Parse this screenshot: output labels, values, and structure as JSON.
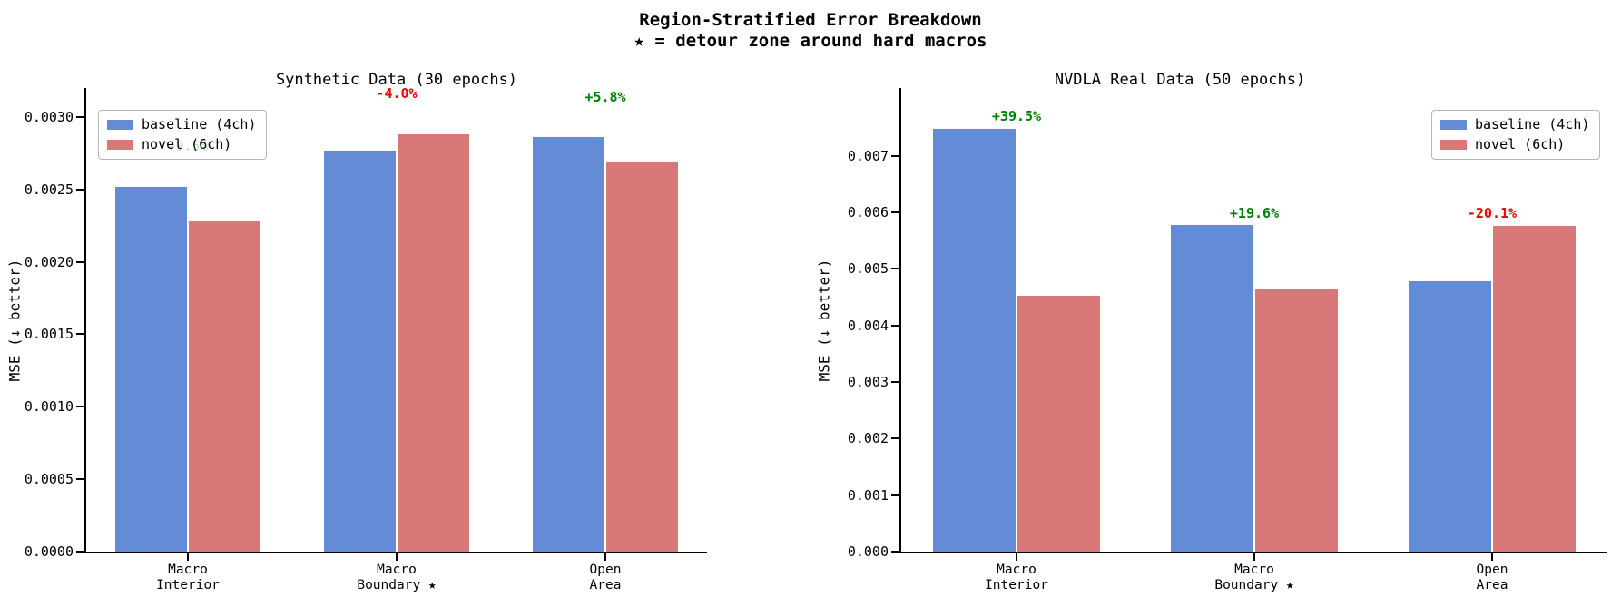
{
  "figure": {
    "title_line1": "Region-Stratified Error Breakdown",
    "title_line2": "★ = detour zone around hard macros",
    "background": "#ffffff",
    "axis_color": "#000000"
  },
  "legend": {
    "items": [
      {
        "label": "baseline (4ch)",
        "color": "#648cd6"
      },
      {
        "label": "novel (6ch)",
        "color": "#d87878"
      }
    ]
  },
  "chart_data": [
    {
      "type": "bar",
      "title": "Synthetic Data (30 epochs)",
      "ylabel": "MSE (↓ better)",
      "categories": [
        "Macro\nInterior",
        "Macro\nBoundary ★",
        "Open\nArea"
      ],
      "series": [
        {
          "name": "baseline (4ch)",
          "color": "#648cd6",
          "values": [
            0.00252,
            0.00277,
            0.00286
          ]
        },
        {
          "name": "novel (6ch)",
          "color": "#d87878",
          "values": [
            0.00228,
            0.00288,
            0.00269
          ]
        }
      ],
      "annotations": [
        {
          "text": "+9.5%",
          "color": "#008000"
        },
        {
          "text": "-4.0%",
          "color": "#ee0000"
        },
        {
          "text": "+5.8%",
          "color": "#008000"
        }
      ],
      "ylim": [
        0,
        0.0032
      ],
      "yticks": [
        0,
        0.0005,
        0.001,
        0.0015,
        0.002,
        0.0025,
        0.003
      ],
      "ytick_labels": [
        "0.0000",
        "0.0005",
        "0.0010",
        "0.0015",
        "0.0020",
        "0.0025",
        "0.0030"
      ],
      "legend_position": "upper-left",
      "annotation_offset": 0.00033,
      "grid": false
    },
    {
      "type": "bar",
      "title": "NVDLA Real Data (50 epochs)",
      "ylabel": "MSE (↓ better)",
      "categories": [
        "Macro\nInterior",
        "Macro\nBoundary ★",
        "Open\nArea"
      ],
      "series": [
        {
          "name": "baseline (4ch)",
          "color": "#648cd6",
          "values": [
            0.00748,
            0.00577,
            0.00479
          ]
        },
        {
          "name": "novel (6ch)",
          "color": "#d87878",
          "values": [
            0.00452,
            0.00464,
            0.00576
          ]
        }
      ],
      "annotations": [
        {
          "text": "+39.5%",
          "color": "#008000"
        },
        {
          "text": "+19.6%",
          "color": "#008000"
        },
        {
          "text": "-20.1%",
          "color": "#ee0000"
        }
      ],
      "ylim": [
        0,
        0.0082
      ],
      "yticks": [
        0,
        0.001,
        0.002,
        0.003,
        0.004,
        0.005,
        0.006,
        0.007
      ],
      "ytick_labels": [
        "0.000",
        "0.001",
        "0.002",
        "0.003",
        "0.004",
        "0.005",
        "0.006",
        "0.007"
      ],
      "legend_position": "upper-right",
      "annotation_offset": 0.00035,
      "grid": false
    }
  ]
}
